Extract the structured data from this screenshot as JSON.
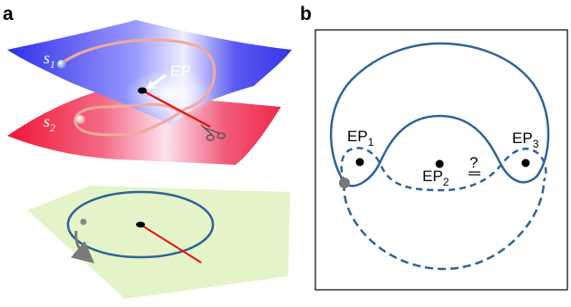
{
  "panel_a": {
    "label": "a",
    "surface_labels": [
      {
        "main": "s",
        "sub": "1"
      },
      {
        "main": "s",
        "sub": "2"
      }
    ],
    "ep_label": "EP"
  },
  "panel_b": {
    "label": "b",
    "ep_labels": [
      {
        "main": "EP",
        "sub": "1"
      },
      {
        "main": "EP",
        "sub": "2"
      },
      {
        "main": "EP",
        "sub": "3"
      }
    ],
    "question_mark": "?"
  },
  "colors": {
    "curve_blue": "#2f6496",
    "upper_surface": "#3b3bf0",
    "lower_surface": "#ee1a3a",
    "plane": "#e4f4c8",
    "cut_line": "#e81010",
    "loop": "#f2a99b"
  }
}
